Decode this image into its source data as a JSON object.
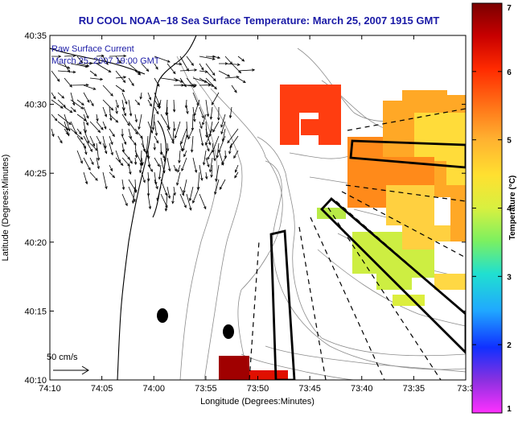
{
  "title": "RU COOL  NOAA−18  Sea Surface Temperature:  March 25, 2007 1915 GMT",
  "inset_line1": "Raw Surface Current",
  "inset_line2": "March 25, 2007 19:00 GMT",
  "scale_label": "50 cm/s",
  "xlabel": "Longitude (Degrees:Minutes)",
  "ylabel": "Latitude (Degrees:Minutes)",
  "colorbar_label": "Temperature (°C)",
  "xticks": [
    "74:10",
    "74:05",
    "74:00",
    "73:55",
    "73:50",
    "73:45",
    "73:40",
    "73:35",
    "73:3"
  ],
  "yticks": [
    "40:35",
    "40:30",
    "40:25",
    "40:20",
    "40:15",
    "40:10"
  ],
  "colorbar_ticks": [
    "7",
    "6",
    "5",
    "4",
    "3",
    "2",
    "1"
  ],
  "colors": {
    "title_text": "#1a1aa6",
    "inset_text": "#1a1aa6",
    "contour": "#8c8c8c",
    "coast": "#000000"
  },
  "colormap": [
    "#7a0000",
    "#c80000",
    "#ff2a00",
    "#ff7a1a",
    "#ffb030",
    "#ffe030",
    "#d8f040",
    "#7cf060",
    "#20e0d0",
    "#20a8ff",
    "#1030ff",
    "#8a30e0",
    "#ff30ff"
  ]
}
